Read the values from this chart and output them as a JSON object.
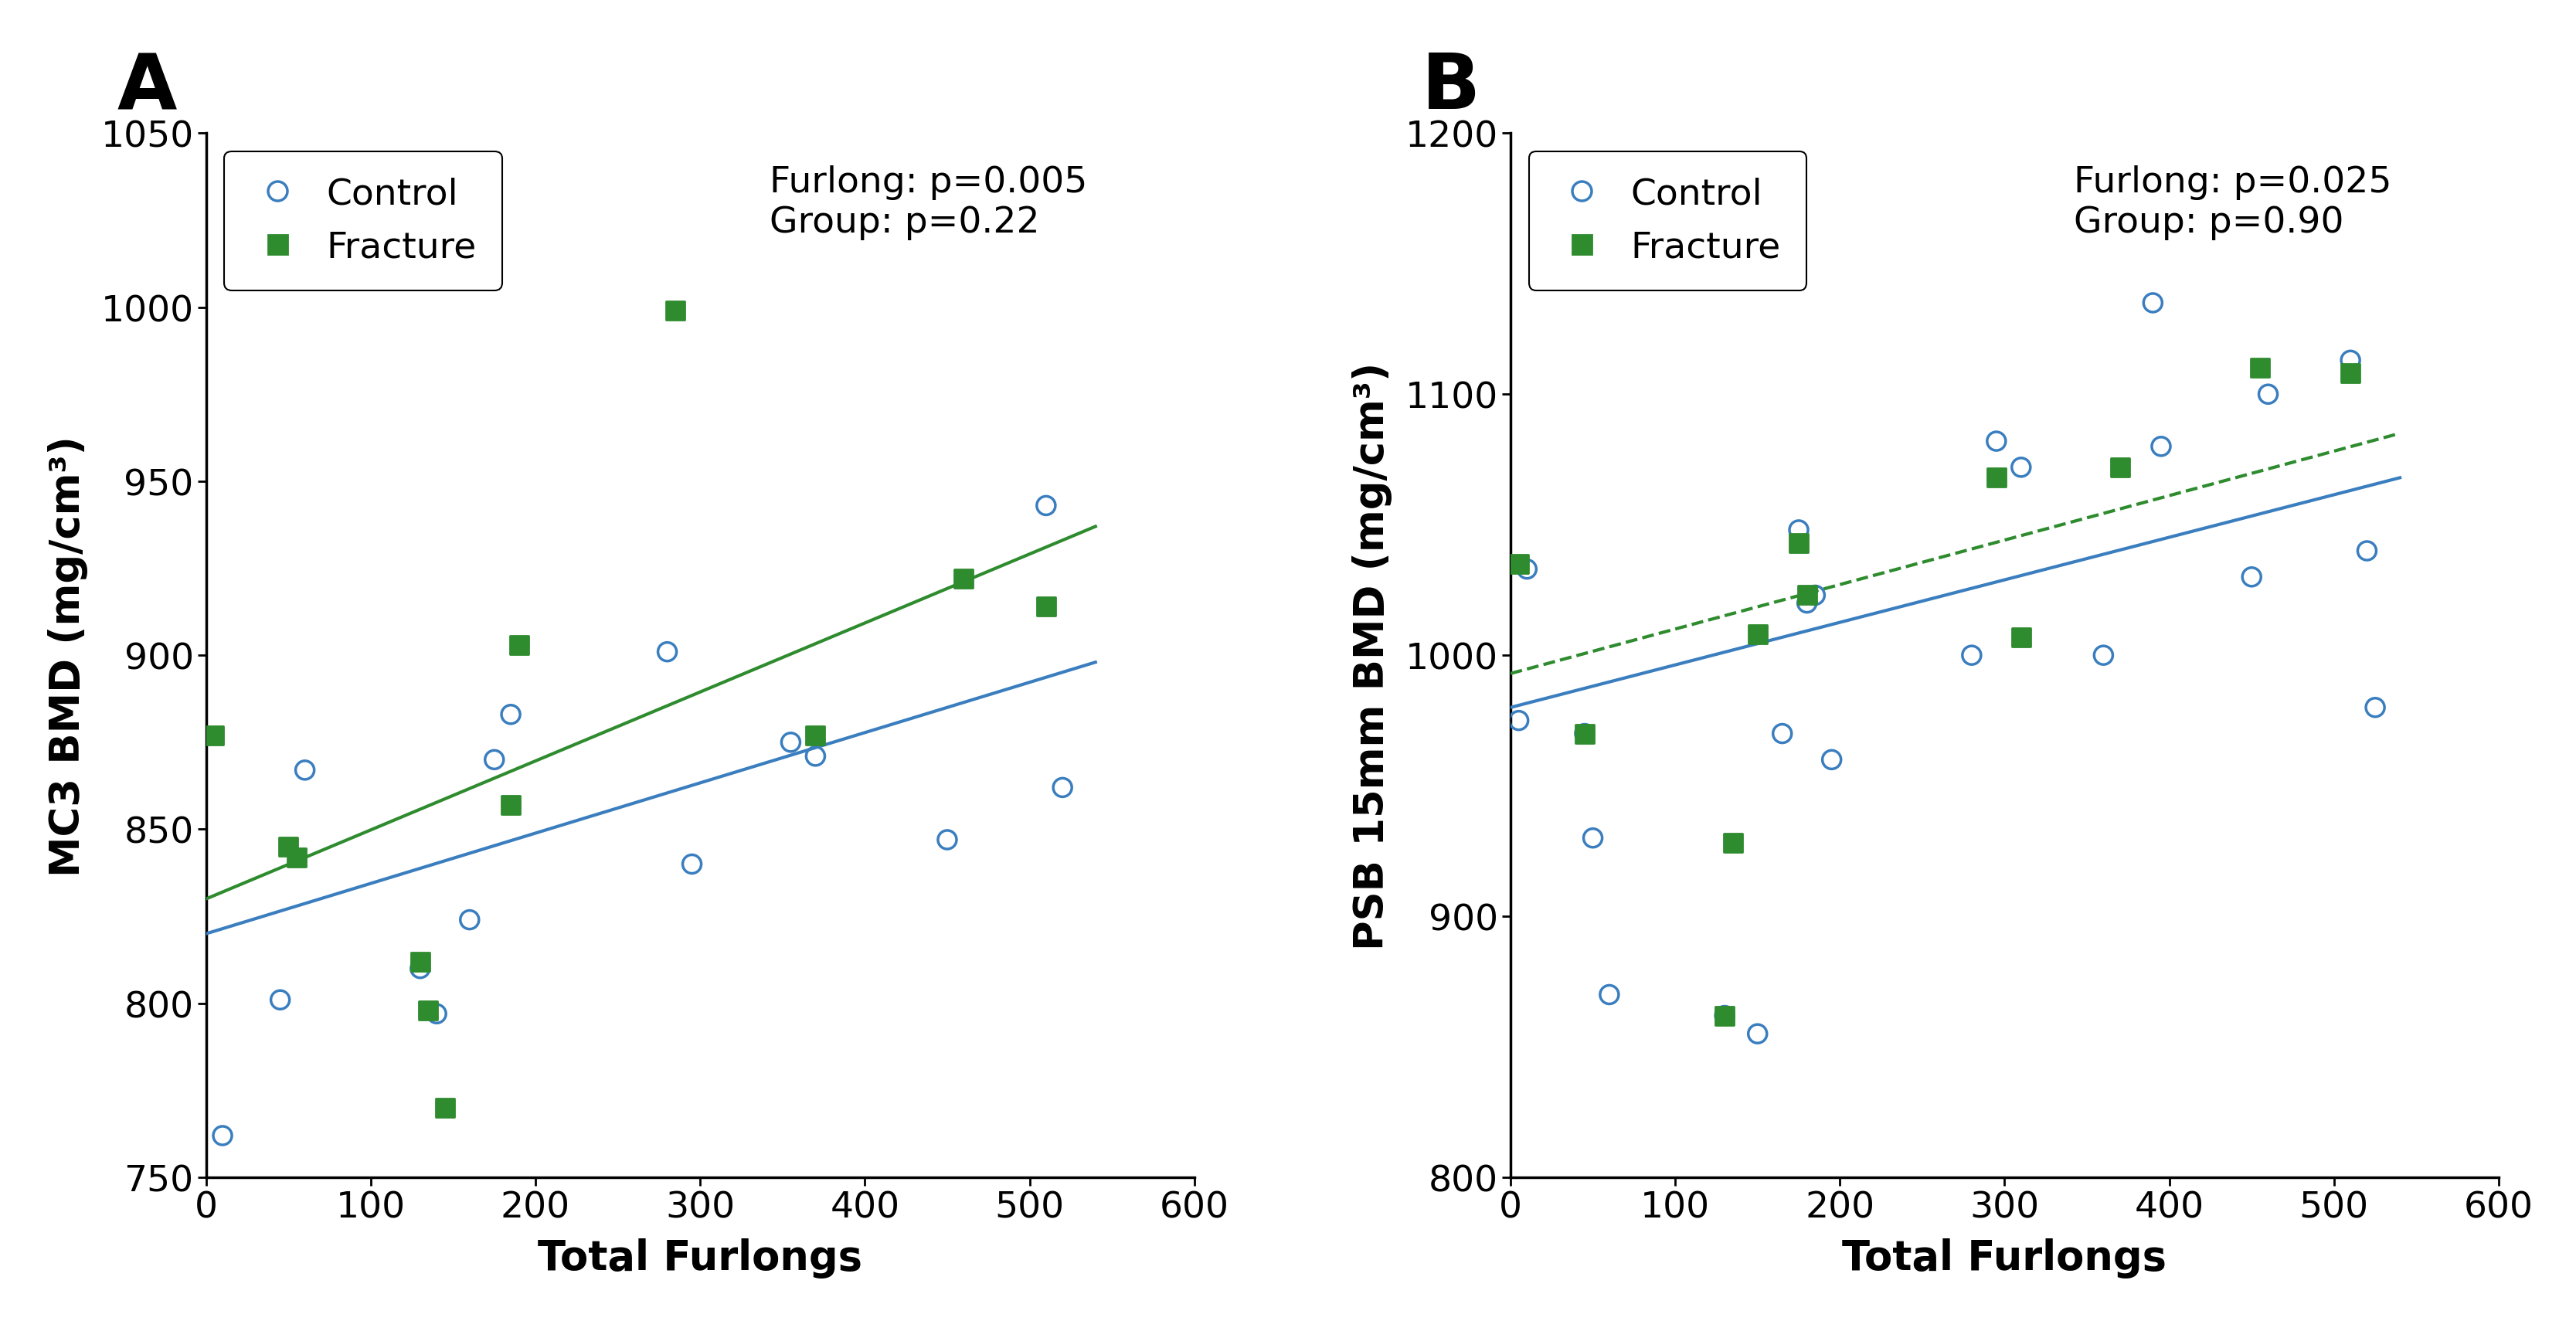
{
  "panel_A": {
    "title_label": "A",
    "xlabel": "Total Furlongs",
    "ylabel": "MC3 BMD (mg/cm³)",
    "xlim": [
      0,
      600
    ],
    "ylim": [
      750,
      1050
    ],
    "xticks": [
      0,
      100,
      200,
      300,
      400,
      500,
      600
    ],
    "yticks": [
      750,
      800,
      850,
      900,
      950,
      1000,
      1050
    ],
    "annotation": "Furlong: p=0.005\nGroup: p=0.22",
    "control_x": [
      10,
      45,
      60,
      130,
      140,
      160,
      175,
      185,
      280,
      295,
      355,
      370,
      450,
      510,
      520
    ],
    "control_y": [
      762,
      801,
      867,
      810,
      797,
      824,
      870,
      883,
      901,
      840,
      875,
      871,
      847,
      943,
      862
    ],
    "fracture_x": [
      5,
      50,
      55,
      130,
      135,
      145,
      185,
      190,
      285,
      370,
      460,
      510
    ],
    "fracture_y": [
      877,
      845,
      842,
      812,
      798,
      770,
      857,
      903,
      999,
      877,
      922,
      914
    ],
    "control_line_x": [
      0,
      540
    ],
    "control_line_y": [
      820,
      898
    ],
    "fracture_line_x": [
      0,
      540
    ],
    "fracture_line_y": [
      830,
      937
    ],
    "control_color": "#3a7ebf",
    "fracture_color": "#2e8b2e",
    "control_line_color": "#3a7ebf",
    "fracture_line_color": "#2e8b2e",
    "fracture_line_style": "solid"
  },
  "panel_B": {
    "title_label": "B",
    "xlabel": "Total Furlongs",
    "ylabel": "PSB 15mm BMD (mg/cm³)",
    "xlim": [
      0,
      600
    ],
    "ylim": [
      800,
      1200
    ],
    "xticks": [
      0,
      100,
      200,
      300,
      400,
      500,
      600
    ],
    "yticks": [
      800,
      900,
      1000,
      1100,
      1200
    ],
    "annotation": "Furlong: p=0.025\nGroup: p=0.90",
    "control_x": [
      5,
      10,
      45,
      50,
      60,
      130,
      150,
      165,
      175,
      180,
      185,
      195,
      280,
      295,
      310,
      360,
      390,
      395,
      450,
      460,
      510,
      520,
      525
    ],
    "control_y": [
      975,
      1033,
      970,
      930,
      870,
      862,
      855,
      970,
      1048,
      1020,
      1023,
      960,
      1000,
      1082,
      1072,
      1000,
      1135,
      1080,
      1030,
      1100,
      1113,
      1040,
      980
    ],
    "fracture_x": [
      5,
      45,
      130,
      135,
      150,
      175,
      180,
      295,
      310,
      370,
      455,
      510
    ],
    "fracture_y": [
      1035,
      970,
      862,
      928,
      1008,
      1043,
      1023,
      1068,
      1007,
      1072,
      1110,
      1108
    ],
    "control_line_x": [
      0,
      540
    ],
    "control_line_y": [
      980,
      1068
    ],
    "fracture_line_x": [
      0,
      540
    ],
    "fracture_line_y": [
      993,
      1085
    ],
    "control_color": "#3a7ebf",
    "fracture_color": "#2e8b2e",
    "control_line_color": "#3a7ebf",
    "fracture_line_color": "#2e8b2e",
    "fracture_line_style": "dashed"
  },
  "background_color": "#ffffff",
  "tick_fontsize": 34,
  "axis_label_fontsize": 38,
  "annotation_fontsize": 34,
  "legend_fontsize": 34,
  "panel_label_fontsize": 72
}
